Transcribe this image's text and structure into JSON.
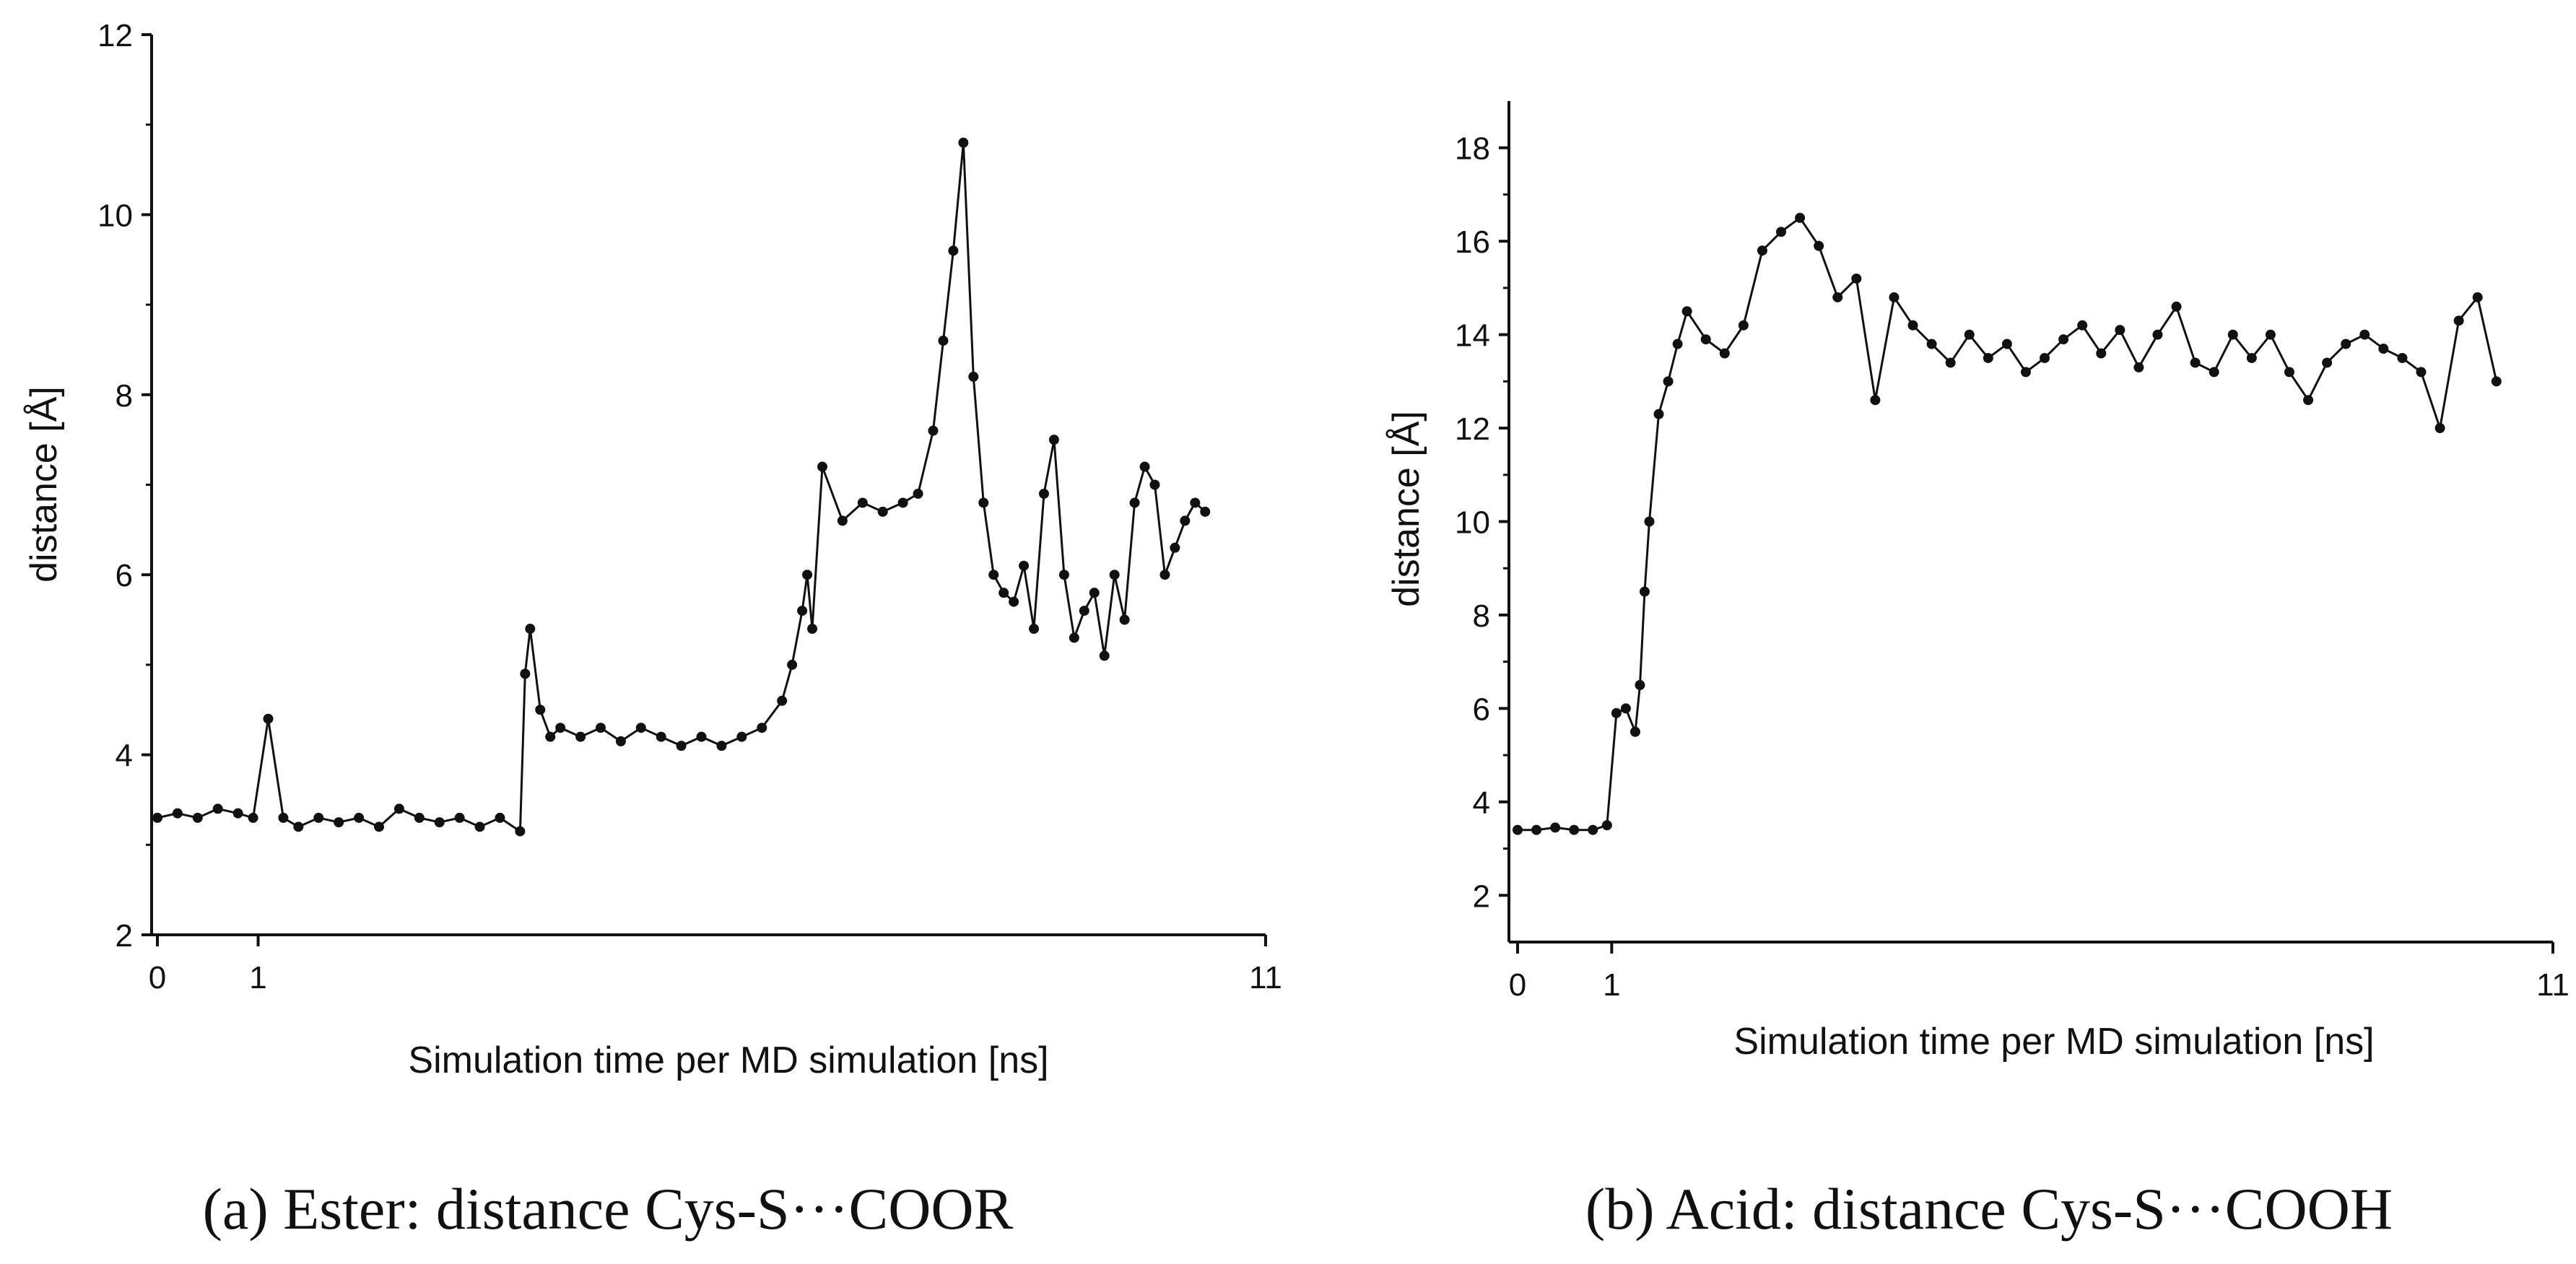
{
  "chart_data": [
    {
      "type": "line",
      "title": "",
      "caption": "(a) Ester: distance Cys-S···COOR",
      "xlabel": "Simulation time per MD simulation [ns]",
      "ylabel": "distance [Å]",
      "xlim": [
        0,
        11
      ],
      "ylim": [
        2,
        12
      ],
      "x_ticks": [
        0,
        1,
        11
      ],
      "y_ticks": [
        2,
        4,
        6,
        8,
        10,
        12
      ],
      "grid": false,
      "series": [
        {
          "name": "Cys-S···COOR",
          "x": [
            0,
            0.2,
            0.4,
            0.6,
            0.8,
            0.95,
            1.1,
            1.25,
            1.4,
            1.6,
            1.8,
            2.0,
            2.2,
            2.4,
            2.6,
            2.8,
            3.0,
            3.2,
            3.4,
            3.6,
            3.65,
            3.7,
            3.8,
            3.9,
            4.0,
            4.2,
            4.4,
            4.6,
            4.8,
            5.0,
            5.2,
            5.4,
            5.6,
            5.8,
            6.0,
            6.2,
            6.3,
            6.4,
            6.45,
            6.5,
            6.6,
            6.8,
            7.0,
            7.2,
            7.4,
            7.55,
            7.7,
            7.8,
            7.9,
            8.0,
            8.1,
            8.2,
            8.3,
            8.4,
            8.5,
            8.6,
            8.7,
            8.8,
            8.9,
            9.0,
            9.1,
            9.2,
            9.3,
            9.4,
            9.5,
            9.6,
            9.7,
            9.8,
            9.9,
            10.0,
            10.1,
            10.2,
            10.3,
            10.4
          ],
          "y": [
            3.3,
            3.35,
            3.3,
            3.4,
            3.35,
            3.3,
            4.4,
            3.3,
            3.2,
            3.3,
            3.25,
            3.3,
            3.2,
            3.4,
            3.3,
            3.25,
            3.3,
            3.2,
            3.3,
            3.15,
            4.9,
            5.4,
            4.5,
            4.2,
            4.3,
            4.2,
            4.3,
            4.15,
            4.3,
            4.2,
            4.1,
            4.2,
            4.1,
            4.2,
            4.3,
            4.6,
            5.0,
            5.6,
            6.0,
            5.4,
            7.2,
            6.6,
            6.8,
            6.7,
            6.8,
            6.9,
            7.6,
            8.6,
            9.6,
            10.8,
            8.2,
            6.8,
            6.0,
            5.8,
            5.7,
            6.1,
            5.4,
            6.9,
            7.5,
            6.0,
            5.3,
            5.6,
            5.8,
            5.1,
            6.0,
            5.5,
            6.8,
            7.2,
            7.0,
            6.0,
            6.3,
            6.6,
            6.8,
            6.7
          ]
        }
      ]
    },
    {
      "type": "line",
      "title": "",
      "caption": "(b) Acid: distance Cys-S···COOH",
      "xlabel": "Simulation time per MD simulation [ns]",
      "ylabel": "distance [Å]",
      "xlim": [
        0,
        11
      ],
      "ylim": [
        1,
        19
      ],
      "x_ticks": [
        0,
        1,
        11
      ],
      "y_ticks": [
        2,
        4,
        6,
        8,
        10,
        12,
        14,
        16,
        18
      ],
      "grid": false,
      "series": [
        {
          "name": "Cys-S···COOH",
          "x": [
            0,
            0.2,
            0.4,
            0.6,
            0.8,
            0.95,
            1.05,
            1.15,
            1.25,
            1.3,
            1.35,
            1.4,
            1.5,
            1.6,
            1.7,
            1.8,
            2.0,
            2.2,
            2.4,
            2.6,
            2.8,
            3.0,
            3.2,
            3.4,
            3.6,
            3.8,
            4.0,
            4.2,
            4.4,
            4.6,
            4.8,
            5.0,
            5.2,
            5.4,
            5.6,
            5.8,
            6.0,
            6.2,
            6.4,
            6.6,
            6.8,
            7.0,
            7.2,
            7.4,
            7.6,
            7.8,
            8.0,
            8.2,
            8.4,
            8.6,
            8.8,
            9.0,
            9.2,
            9.4,
            9.6,
            9.8,
            10.0,
            10.2,
            10.4
          ],
          "y": [
            3.4,
            3.4,
            3.45,
            3.4,
            3.4,
            3.5,
            5.9,
            6.0,
            5.5,
            6.5,
            8.5,
            10.0,
            12.3,
            13.0,
            13.8,
            14.5,
            13.9,
            13.6,
            14.2,
            15.8,
            16.2,
            16.5,
            15.9,
            14.8,
            15.2,
            12.6,
            14.8,
            14.2,
            13.8,
            13.4,
            14.0,
            13.5,
            13.8,
            13.2,
            13.5,
            13.9,
            14.2,
            13.6,
            14.1,
            13.3,
            14.0,
            14.6,
            13.4,
            13.2,
            14.0,
            13.5,
            14.0,
            13.2,
            12.6,
            13.4,
            13.8,
            14.0,
            13.7,
            13.5,
            13.2,
            12.0,
            14.3,
            14.8,
            13.0
          ]
        }
      ]
    }
  ]
}
